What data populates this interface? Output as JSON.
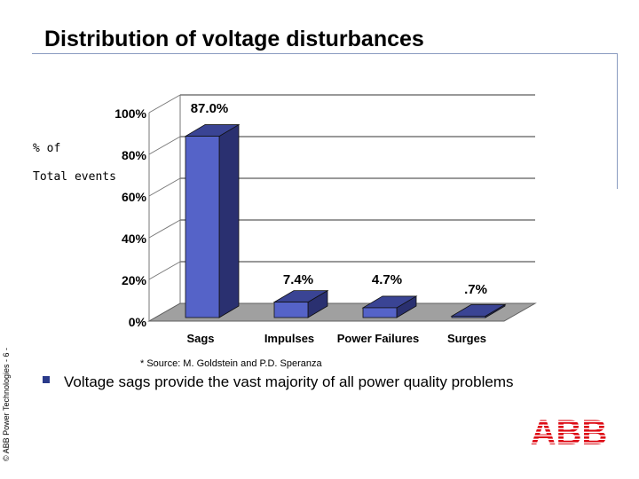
{
  "page": {
    "title": "Distribution of voltage disturbances",
    "copyright": "© ABB Power Technologies - 6 -",
    "source": "* Source: M. Goldstein and P.D. Speranza",
    "bullet_text": "Voltage sags provide the vast majority of all power quality problems",
    "logo_text": "ABB",
    "colors": {
      "bar_front": "#5563c8",
      "bar_side": "#2a3070",
      "bar_top": "#3a4494",
      "floor": "#a0a0a0",
      "logo": "#dd0a14"
    }
  },
  "chart_data": {
    "type": "bar",
    "ylabel_lines": [
      "% of",
      "Total events"
    ],
    "categories": [
      "Sags",
      "Impulses",
      "Power Failures",
      "Surges"
    ],
    "values": [
      87.0,
      7.4,
      4.7,
      0.7
    ],
    "data_labels": [
      "87.0%",
      "7.4%",
      "4.7%",
      ".7%"
    ],
    "yticks": [
      0,
      20,
      40,
      60,
      80,
      100
    ],
    "ytick_labels": [
      "0%",
      "20%",
      "40%",
      "60%",
      "80%",
      "100%"
    ],
    "ylim": [
      0,
      100
    ],
    "grid": true,
    "projection": "3d"
  }
}
